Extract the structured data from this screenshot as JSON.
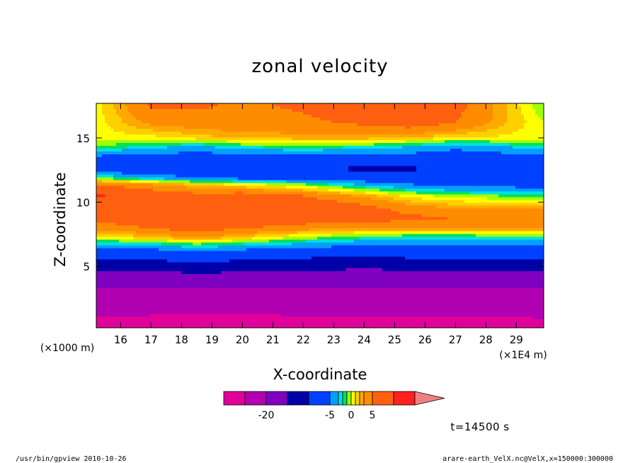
{
  "chart_data": {
    "type": "heatmap",
    "title": "zonal velocity",
    "xlabel": "X-coordinate",
    "ylabel": "Z-coordinate",
    "x_unit_left": "(×1000 m)",
    "x_unit_right": "(×1E4 m)",
    "xlim": [
      15.2,
      29.9
    ],
    "ylim": [
      0.2,
      17.7
    ],
    "x_ticks": [
      16,
      17,
      18,
      19,
      20,
      21,
      22,
      23,
      24,
      25,
      26,
      27,
      28,
      29
    ],
    "y_ticks": [
      5,
      10,
      15
    ],
    "x_tick_labels": [
      "16",
      "17",
      "18",
      "19",
      "20",
      "21",
      "22",
      "23",
      "24",
      "25",
      "26",
      "27",
      "28",
      "29"
    ],
    "y_tick_labels": [
      "5",
      "10",
      "15"
    ],
    "colorbar": {
      "tick_labels": [
        "-20",
        "-5",
        "0",
        "5"
      ],
      "tick_values": [
        -20,
        -5,
        0,
        5
      ],
      "levels": [
        -30,
        -25,
        -20,
        -15,
        -10,
        -5,
        -3,
        -2,
        -1,
        0,
        1,
        2,
        3,
        5,
        10,
        15
      ],
      "colors": [
        "#e0009a",
        "#b000b0",
        "#8000c0",
        "#0000a8",
        "#0040ff",
        "#00a0ff",
        "#00e0e0",
        "#00e060",
        "#a0ff00",
        "#ffff00",
        "#ffd000",
        "#ffa800",
        "#ff8c00",
        "#ff6010",
        "#ff2020"
      ],
      "overflow_color": "#f08080"
    },
    "field": {
      "x": [
        15.2,
        17.0,
        18.5,
        20.0,
        22.0,
        24.0,
        25.5,
        27.0,
        29.9
      ],
      "z": [
        0.2,
        2.0,
        2.8,
        4.3,
        5.8,
        6.6,
        7.2,
        8.1,
        8.8,
        9.5,
        10.5,
        11.4,
        11.9,
        12.6,
        13.5,
        14.3,
        15.0,
        16.2,
        17.7
      ],
      "u": [
        [
          -27.0,
          -27.5,
          -28.2,
          -27.8,
          -27.3,
          -27.0,
          -26.8,
          -26.6,
          -26.5
        ],
        [
          -23.0,
          -23.0,
          -23.1,
          -23.0,
          -23.0,
          -23.0,
          -23.0,
          -23.0,
          -23.0
        ],
        [
          -21.5,
          -21.5,
          -21.5,
          -21.5,
          -21.5,
          -21.5,
          -21.5,
          -21.5,
          -21.5
        ],
        [
          -17.5,
          -17.0,
          -16.0,
          -16.5,
          -17.0,
          -17.5,
          -17.2,
          -17.0,
          -17.0
        ],
        [
          -8.5,
          -8.0,
          -7.0,
          -8.0,
          -9.0,
          -9.5,
          -9.0,
          -9.0,
          -9.0
        ],
        [
          -4.0,
          -3.5,
          -2.0,
          -3.0,
          -4.0,
          -5.0,
          -5.5,
          -5.5,
          -5.5
        ],
        [
          0.5,
          1.5,
          3.0,
          1.5,
          -0.5,
          -2.0,
          -2.5,
          -2.5,
          -2.5
        ],
        [
          4.0,
          5.5,
          7.0,
          5.5,
          4.5,
          4.0,
          4.0,
          4.2,
          4.5
        ],
        [
          6.0,
          7.0,
          9.0,
          7.0,
          6.5,
          6.0,
          5.5,
          5.0,
          5.0
        ],
        [
          7.5,
          7.0,
          8.0,
          8.0,
          7.5,
          6.0,
          4.0,
          3.0,
          3.0
        ],
        [
          10.5,
          7.0,
          6.0,
          6.5,
          5.0,
          2.5,
          0.5,
          -0.5,
          -1.5
        ],
        [
          4.5,
          3.0,
          1.5,
          0.5,
          -1.0,
          -3.5,
          -5.0,
          -6.0,
          -6.5
        ],
        [
          -1.0,
          -3.5,
          -5.0,
          -6.0,
          -6.5,
          -7.0,
          -7.0,
          -7.0,
          -7.0
        ],
        [
          -7.5,
          -7.5,
          -7.5,
          -7.5,
          -8.0,
          -11.5,
          -11.0,
          -7.8,
          -7.5
        ],
        [
          -5.5,
          -6.0,
          -6.5,
          -6.0,
          -5.8,
          -6.0,
          -6.2,
          -6.5,
          -6.0
        ],
        [
          -1.0,
          -2.5,
          -3.5,
          -2.0,
          -1.5,
          -2.0,
          -3.0,
          -4.5,
          -2.0
        ],
        [
          0.5,
          0.5,
          1.5,
          2.0,
          2.5,
          2.5,
          2.0,
          1.0,
          0.5
        ],
        [
          0.5,
          3.5,
          4.0,
          4.5,
          4.5,
          5.5,
          6.5,
          5.0,
          0.0
        ],
        [
          0.5,
          5.5,
          5.5,
          4.5,
          5.5,
          7.5,
          8.5,
          6.0,
          -1.0
        ]
      ]
    }
  },
  "time_label": "t=14500 s",
  "footer_left": "/usr/bin/gpview  2010-10-26",
  "footer_right": "arare-earth_VelX.nc@VelX,x=150000:300000"
}
